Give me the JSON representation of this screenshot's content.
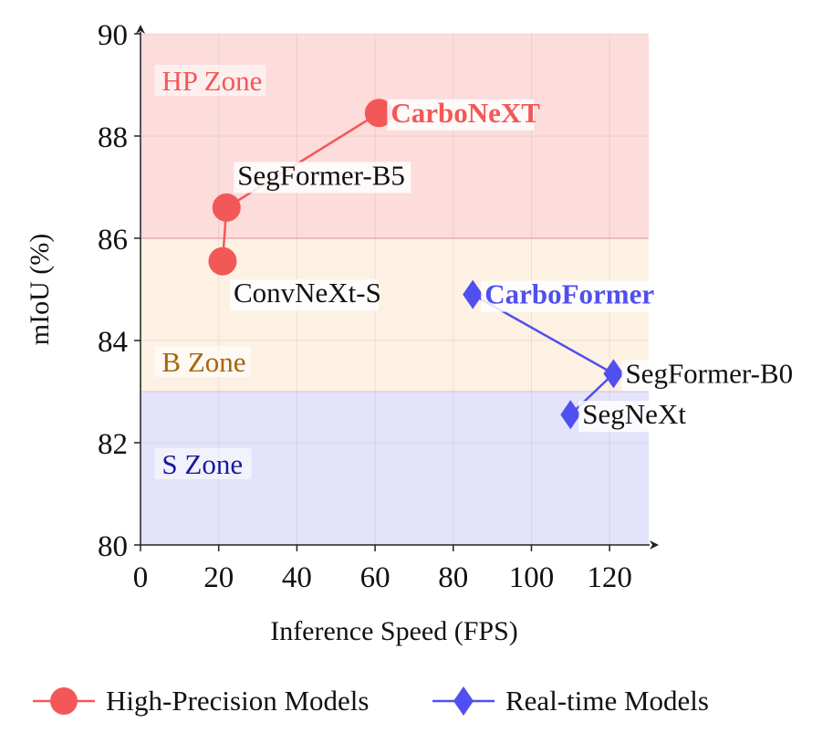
{
  "chart_data": {
    "type": "scatter",
    "xlabel": "Inference Speed (FPS)",
    "ylabel": "mIoU (%)",
    "xlim": [
      0,
      130
    ],
    "ylim": [
      80,
      90
    ],
    "xticks": [
      "0",
      "20",
      "40",
      "60",
      "80",
      "100",
      "120"
    ],
    "yticks": [
      "80",
      "82",
      "84",
      "86",
      "88",
      "90"
    ],
    "grid": true,
    "legend_position": "bottom",
    "zones": [
      {
        "label": "HP Zone",
        "y_range": [
          86,
          90
        ],
        "color": "#fddcdc",
        "label_color": "#f25858",
        "label_x": 5,
        "label_y": 89
      },
      {
        "label": "B Zone",
        "y_range": [
          83,
          86
        ],
        "color": "#fdf1e4",
        "label_color": "#a86410",
        "label_x": 5,
        "label_y": 83.5
      },
      {
        "label": "S Zone",
        "y_range": [
          80,
          83
        ],
        "color": "#e3e3fb",
        "label_color": "#1a1a9c",
        "label_x": 5,
        "label_y": 81.5
      }
    ],
    "series": [
      {
        "name": "High-Precision Models",
        "marker": "circle",
        "color": "#f25858",
        "points": [
          {
            "label": "ConvNeXt-S",
            "x": 21,
            "y": 85.55,
            "bold": false,
            "label_pos": "below"
          },
          {
            "label": "SegFormer-B5",
            "x": 22,
            "y": 86.6,
            "bold": false,
            "label_pos": "above"
          },
          {
            "label": "CarboNeXT",
            "x": 61,
            "y": 88.45,
            "bold": true,
            "label_pos": "right"
          }
        ]
      },
      {
        "name": "Real-time Models",
        "marker": "diamond",
        "color": "#5050ee",
        "points": [
          {
            "label": "SegNeXt",
            "x": 110,
            "y": 82.55,
            "bold": false,
            "label_pos": "right"
          },
          {
            "label": "SegFormer-B0",
            "x": 121,
            "y": 83.35,
            "bold": false,
            "label_pos": "right"
          },
          {
            "label": "CarboFormer",
            "x": 85,
            "y": 84.9,
            "bold": true,
            "label_pos": "right"
          }
        ]
      }
    ]
  }
}
